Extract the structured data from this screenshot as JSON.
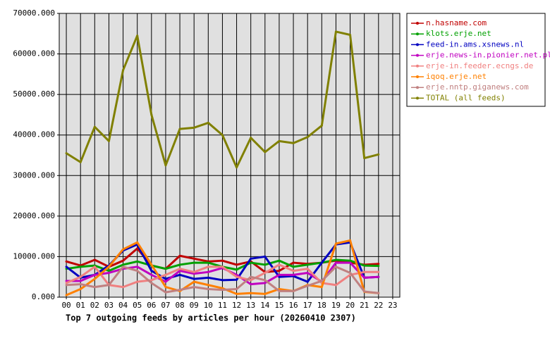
{
  "chart_data": {
    "type": "line",
    "title": "Top 7 outgoing feeds by articles per hour (20260410 2307)",
    "categories": [
      "00",
      "01",
      "02",
      "03",
      "04",
      "05",
      "06",
      "07",
      "08",
      "09",
      "10",
      "11",
      "12",
      "13",
      "14",
      "15",
      "16",
      "17",
      "18",
      "19",
      "20",
      "21",
      "22",
      "23"
    ],
    "ylim": [
      0,
      70000
    ],
    "yticks": [
      {
        "value": 0,
        "label": "0.000"
      },
      {
        "value": 10000,
        "label": "10000.000"
      },
      {
        "value": 20000,
        "label": "20000.000"
      },
      {
        "value": 30000,
        "label": "30000.000"
      },
      {
        "value": 40000,
        "label": "40000.000"
      },
      {
        "value": 50000,
        "label": "50000.000"
      },
      {
        "value": 60000,
        "label": "60000.000"
      },
      {
        "value": 70000,
        "label": "70000.000"
      }
    ],
    "grid": true,
    "legend": "top-right",
    "series": [
      {
        "name": "n.hasname.com",
        "color": "#c00000",
        "values": [
          8800,
          7800,
          9200,
          7500,
          9000,
          12000,
          7800,
          7000,
          10200,
          9500,
          8800,
          9000,
          8000,
          8800,
          6200,
          6500,
          8500,
          8200,
          8500,
          9000,
          8500,
          8000,
          8200,
          null
        ]
      },
      {
        "name": "klots.erje.net",
        "color": "#00a000",
        "values": [
          7000,
          7500,
          7800,
          6500,
          8000,
          8800,
          7800,
          7000,
          8000,
          8500,
          8500,
          7500,
          6800,
          8500,
          8000,
          9000,
          7500,
          8000,
          8500,
          9200,
          9000,
          7800,
          7700,
          null
        ]
      },
      {
        "name": "feed-in.ams.xsnews.nl",
        "color": "#0000c0",
        "values": [
          7500,
          4800,
          5500,
          7800,
          11500,
          13000,
          6500,
          4500,
          5500,
          4500,
          4800,
          4200,
          4300,
          9500,
          10000,
          5000,
          5200,
          3800,
          8500,
          13000,
          13500,
          4800,
          5000,
          null
        ]
      },
      {
        "name": "erje.news-in.pionier.net.pl",
        "color": "#c000c0",
        "values": [
          4000,
          4000,
          5500,
          6000,
          7000,
          7500,
          5500,
          3800,
          6500,
          5800,
          6200,
          7200,
          5500,
          3200,
          3500,
          5500,
          5500,
          6000,
          3800,
          8500,
          8500,
          4800,
          5000,
          null
        ]
      },
      {
        "name": "erje-in.feeder.ecngs.de",
        "color": "#f08080",
        "values": [
          3500,
          5000,
          7500,
          3000,
          2500,
          3800,
          4200,
          5500,
          7000,
          6200,
          7500,
          7500,
          5000,
          4200,
          6000,
          8000,
          6500,
          7000,
          3500,
          3000,
          5500,
          6200,
          6200,
          null
        ]
      },
      {
        "name": "iqoq.erje.net",
        "color": "#ff8000",
        "values": [
          500,
          2000,
          4500,
          7500,
          11800,
          13500,
          8000,
          2500,
          1500,
          3800,
          3000,
          2200,
          800,
          1000,
          800,
          2000,
          1500,
          3000,
          2500,
          13200,
          14000,
          1300,
          1000,
          null
        ]
      },
      {
        "name": "erje.nntp.giganews.com",
        "color": "#c08080",
        "values": [
          3000,
          3200,
          2500,
          3000,
          7500,
          6500,
          3500,
          1200,
          1800,
          2500,
          2000,
          1800,
          2000,
          5000,
          4200,
          1500,
          1500,
          2800,
          4000,
          7500,
          6000,
          1400,
          1000,
          null
        ]
      },
      {
        "name": "TOTAL (all feeds)",
        "color": "#808000",
        "values": [
          35500,
          33300,
          42000,
          38500,
          56000,
          64500,
          45000,
          32500,
          41500,
          41800,
          43000,
          40000,
          32000,
          39300,
          35800,
          38500,
          38000,
          39500,
          42300,
          65500,
          64700,
          34300,
          35200,
          null
        ]
      }
    ]
  }
}
